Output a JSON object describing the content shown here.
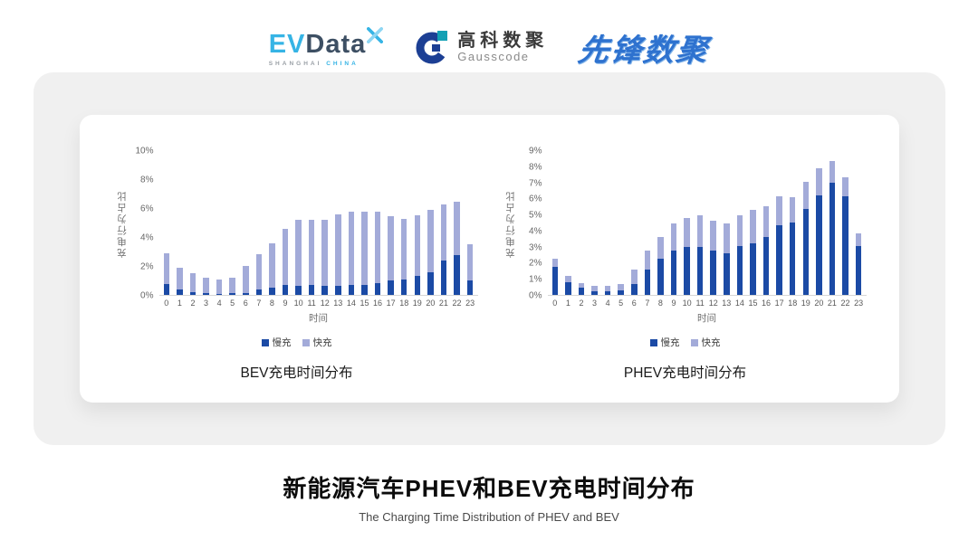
{
  "logos": {
    "evdata": {
      "ev": "EV",
      "data": "Data",
      "sub_left": "SHANGHAI",
      "sub_right": "CHINA"
    },
    "gausscode": {
      "cn": "高科数聚",
      "en": "Gausscode"
    },
    "xianfeng": {
      "text": "先锋数聚"
    }
  },
  "chart_data": [
    {
      "type": "bar",
      "stacked": true,
      "title": "BEV充电时间分布",
      "xlabel": "时间",
      "ylabel": "充电行为占比",
      "ymax": 10,
      "yticks": [
        10,
        8,
        6,
        4,
        2,
        0
      ],
      "grid": false,
      "legend_position": "bottom",
      "categories": [
        0,
        1,
        2,
        3,
        4,
        5,
        6,
        7,
        8,
        9,
        10,
        11,
        12,
        13,
        14,
        15,
        16,
        17,
        18,
        19,
        20,
        21,
        22,
        23
      ],
      "series": [
        {
          "name": "慢充",
          "color": "#1b4aa5",
          "values": [
            0.75,
            0.35,
            0.2,
            0.1,
            0.08,
            0.1,
            0.15,
            0.35,
            0.5,
            0.7,
            0.65,
            0.7,
            0.6,
            0.65,
            0.7,
            0.7,
            0.8,
            1.0,
            1.1,
            1.3,
            1.6,
            2.4,
            2.75,
            1.0
          ]
        },
        {
          "name": "快充",
          "color": "#a3abd9",
          "values": [
            2.15,
            1.55,
            1.3,
            1.1,
            1.0,
            1.1,
            1.85,
            2.45,
            3.1,
            3.9,
            4.55,
            4.5,
            4.6,
            4.95,
            5.1,
            5.1,
            5.0,
            4.45,
            4.2,
            4.25,
            4.3,
            3.9,
            3.75,
            2.55
          ]
        }
      ]
    },
    {
      "type": "bar",
      "stacked": true,
      "title": "PHEV充电时间分布",
      "xlabel": "时间",
      "ylabel": "充电行为占比",
      "ymax": 9,
      "yticks": [
        9,
        8,
        7,
        6,
        5,
        4,
        3,
        2,
        1,
        0
      ],
      "grid": false,
      "legend_position": "bottom",
      "categories": [
        0,
        1,
        2,
        3,
        4,
        5,
        6,
        7,
        8,
        9,
        10,
        11,
        12,
        13,
        14,
        15,
        16,
        17,
        18,
        19,
        20,
        21,
        22,
        23
      ],
      "series": [
        {
          "name": "慢充",
          "color": "#1b4aa5",
          "values": [
            1.75,
            0.8,
            0.45,
            0.25,
            0.25,
            0.3,
            0.7,
            1.6,
            2.25,
            2.8,
            3.0,
            3.0,
            2.8,
            2.6,
            3.05,
            3.2,
            3.6,
            4.35,
            4.55,
            5.35,
            6.2,
            7.0,
            6.15,
            3.05
          ]
        },
        {
          "name": "快充",
          "color": "#a3abd9",
          "values": [
            0.5,
            0.4,
            0.3,
            0.3,
            0.3,
            0.4,
            0.9,
            1.15,
            1.4,
            1.7,
            1.8,
            2.0,
            1.85,
            1.9,
            1.95,
            2.1,
            1.95,
            1.8,
            1.55,
            1.75,
            1.7,
            1.4,
            1.2,
            0.8
          ]
        }
      ]
    }
  ],
  "footer": {
    "title": "新能源汽车PHEV和BEV充电时间分布",
    "subtitle": "The Charging Time Distribution of PHEV and BEV"
  },
  "colors": {
    "slow": "#1b4aa5",
    "fast": "#a3abd9",
    "brand_blue": "#36b4e5",
    "brand_dark": "#3d4f63"
  }
}
